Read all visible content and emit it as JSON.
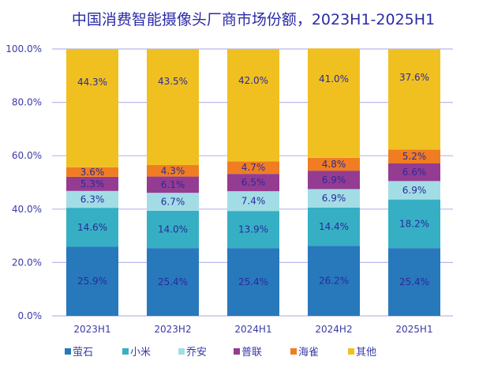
{
  "chart_data": {
    "type": "bar",
    "stacked": true,
    "title": "中国消费智能摄像头厂商市场份额，2023H1-2025H1",
    "xlabel": "",
    "ylabel": "",
    "ylim": [
      0,
      100
    ],
    "yticks": [
      "0.0%",
      "20.0%",
      "40.0%",
      "60.0%",
      "80.0%",
      "100.0%"
    ],
    "ytick_values": [
      0,
      20,
      40,
      60,
      80,
      100
    ],
    "grid": true,
    "legend_position": "bottom",
    "categories": [
      "2023H1",
      "2023H2",
      "2024H1",
      "2024H2",
      "2025H1"
    ],
    "series": [
      {
        "name": "萤石",
        "color": "#2878BC",
        "values": [
          25.9,
          25.4,
          25.4,
          26.2,
          25.4
        ]
      },
      {
        "name": "小米",
        "color": "#36AFC4",
        "values": [
          14.6,
          14.0,
          13.9,
          14.4,
          18.2
        ]
      },
      {
        "name": "乔安",
        "color": "#A2DDE6",
        "values": [
          6.3,
          6.7,
          7.4,
          6.9,
          6.9
        ]
      },
      {
        "name": "普联",
        "color": "#943C92",
        "values": [
          5.3,
          6.1,
          6.5,
          6.9,
          6.6
        ]
      },
      {
        "name": "海雀",
        "color": "#F07D22",
        "values": [
          3.6,
          4.3,
          4.7,
          4.8,
          5.2
        ]
      },
      {
        "name": "其他",
        "color": "#F0C020",
        "values": [
          44.3,
          43.5,
          42.0,
          41.0,
          37.6
        ]
      }
    ],
    "value_format": "{v}%"
  }
}
